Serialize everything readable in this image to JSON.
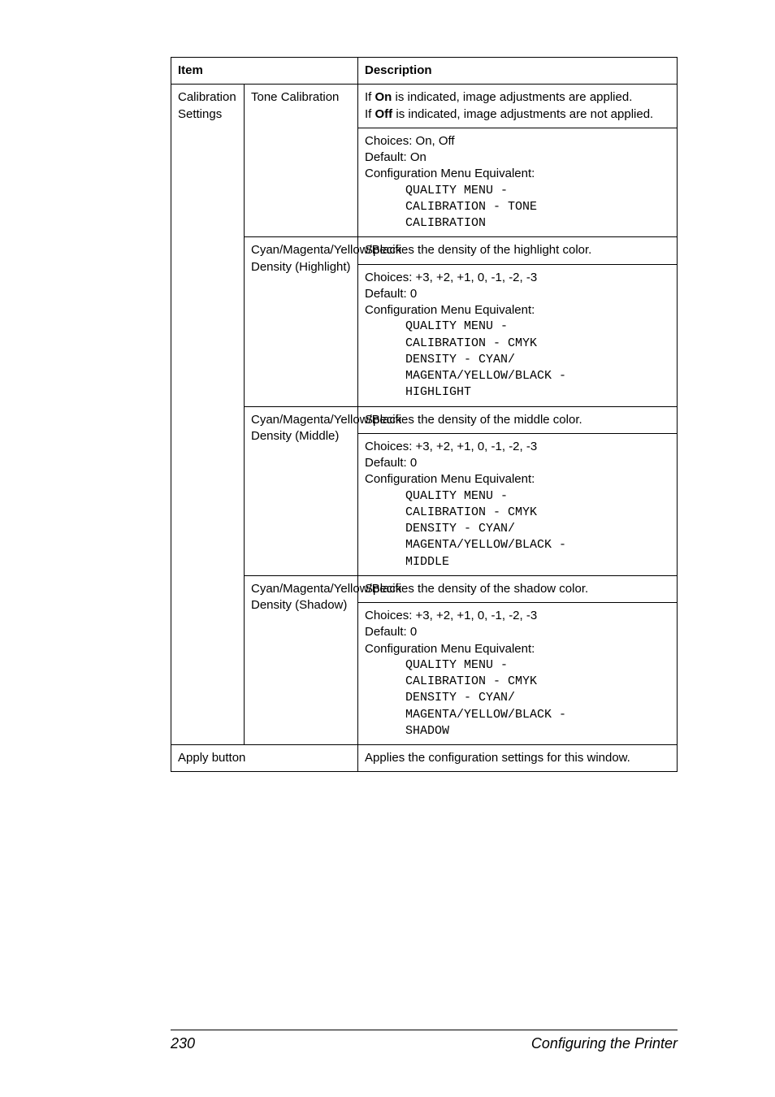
{
  "table": {
    "header": {
      "item": "Item",
      "desc": "Description"
    },
    "rows": {
      "calib_settings_label": "Calibration Settings",
      "tone_calib": {
        "label": "Tone Calibration",
        "desc_top_prefix1": "If ",
        "desc_top_bold1": "On",
        "desc_top_mid1": " is indicated, image adjustments are applied.",
        "desc_top_prefix2": "If ",
        "desc_top_bold2": "Off",
        "desc_top_mid2": " is indicated, image adjustments are not applied.",
        "choices": "Choices: On, Off",
        "default": "Default:  On",
        "cfg": "Configuration Menu Equivalent:",
        "mono1": "QUALITY MENU -",
        "mono2": "CALIBRATION - TONE",
        "mono3": "CALIBRATION"
      },
      "highlight": {
        "label": "Cyan/Magenta/Yellow/Black Density (Highlight)",
        "desc_top": "Specifies the density of the highlight color.",
        "choices": "Choices: +3, +2, +1, 0, -1, -2, -3",
        "default": "Default:  0",
        "cfg": "Configuration Menu Equivalent:",
        "mono1": "QUALITY MENU -",
        "mono2": "CALIBRATION - CMYK",
        "mono3": "DENSITY - CYAN/",
        "mono4": "MAGENTA/YELLOW/BLACK -",
        "mono5": "HIGHLIGHT"
      },
      "middle": {
        "label": "Cyan/Magenta/Yellow/Black Density (Middle)",
        "desc_top": "Specifies the density of the middle color.",
        "choices": "Choices: +3, +2, +1, 0, -1, -2, -3",
        "default": "Default:  0",
        "cfg": "Configuration Menu Equivalent:",
        "mono1": "QUALITY MENU -",
        "mono2": "CALIBRATION - CMYK",
        "mono3": "DENSITY - CYAN/",
        "mono4": "MAGENTA/YELLOW/BLACK -",
        "mono5": "MIDDLE"
      },
      "shadow": {
        "label": "Cyan/Magenta/Yellow/Black Density (Shadow)",
        "desc_top": "Specifies the density of the shadow color.",
        "choices": "Choices: +3, +2, +1, 0, -1, -2, -3",
        "default": "Default:  0",
        "cfg": "Configuration Menu Equivalent:",
        "mono1": "QUALITY MENU -",
        "mono2": "CALIBRATION - CMYK",
        "mono3": "DENSITY - CYAN/",
        "mono4": "MAGENTA/YELLOW/BLACK -",
        "mono5": "SHADOW"
      },
      "apply": {
        "label": "Apply button",
        "desc": "Applies the configuration settings for this window."
      }
    }
  },
  "footer": {
    "page": "230",
    "title": "Configuring the Printer"
  }
}
